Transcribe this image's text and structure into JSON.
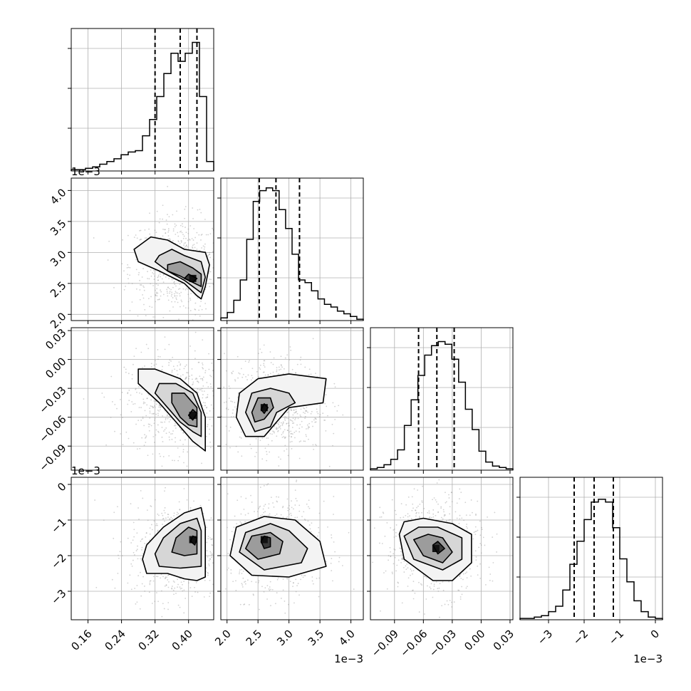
{
  "chart_data": {
    "type": "scatter",
    "subtype": "corner-plot",
    "n_params": 4,
    "grid": true,
    "diagonal": "step-histogram",
    "quantile_line_style": "dashed",
    "offset_label": "1e−3",
    "params": [
      {
        "range": [
          0.12,
          0.46
        ],
        "ticks": [
          0.16,
          0.24,
          0.32,
          0.4
        ],
        "tick_labels": [
          "0.16",
          "0.24",
          "0.32",
          "0.40"
        ],
        "quantiles": [
          0.32,
          0.38,
          0.42
        ],
        "offset": ""
      },
      {
        "range": [
          1.9,
          4.2
        ],
        "ticks": [
          2.0,
          2.5,
          3.0,
          3.5,
          4.0
        ],
        "tick_labels": [
          "2.0",
          "2.5",
          "3.0",
          "3.5",
          "4.0"
        ],
        "quantiles": [
          2.52,
          2.79,
          3.17
        ],
        "offset": "1e−3"
      },
      {
        "range": [
          -0.115,
          0.033
        ],
        "ticks": [
          -0.09,
          -0.06,
          -0.03,
          0.0,
          0.03
        ],
        "tick_labels": [
          "−0.09",
          "−0.06",
          "−0.03",
          "0.00",
          "0.03"
        ],
        "quantiles": [
          -0.065,
          -0.046,
          -0.028
        ],
        "offset": ""
      },
      {
        "range": [
          -3.8,
          0.2
        ],
        "ticks": [
          -3,
          -2,
          -1,
          0
        ],
        "tick_labels": [
          "−3",
          "−2",
          "−1",
          "0"
        ],
        "quantiles": [
          -2.28,
          -1.72,
          -1.18
        ],
        "offset": "1e−3"
      }
    ],
    "histograms": [
      [
        0.01,
        0.01,
        0.02,
        0.03,
        0.05,
        0.07,
        0.09,
        0.12,
        0.14,
        0.15,
        0.26,
        0.38,
        0.55,
        0.72,
        0.87,
        0.81,
        0.87,
        0.95,
        0.55,
        0.07
      ],
      [
        0.02,
        0.06,
        0.15,
        0.3,
        0.6,
        0.88,
        0.96,
        0.98,
        0.96,
        0.82,
        0.68,
        0.49,
        0.3,
        0.28,
        0.22,
        0.16,
        0.12,
        0.1,
        0.07,
        0.05,
        0.03,
        0.01
      ],
      [
        0.01,
        0.02,
        0.04,
        0.08,
        0.15,
        0.33,
        0.52,
        0.7,
        0.85,
        0.92,
        0.95,
        0.93,
        0.82,
        0.65,
        0.45,
        0.3,
        0.14,
        0.06,
        0.03,
        0.02,
        0.01
      ],
      [
        0.01,
        0.01,
        0.02,
        0.03,
        0.06,
        0.1,
        0.22,
        0.41,
        0.58,
        0.74,
        0.87,
        0.89,
        0.87,
        0.68,
        0.45,
        0.28,
        0.14,
        0.06,
        0.02,
        0.01
      ]
    ],
    "pairs": [
      {
        "x": 0,
        "y": 1,
        "peak": [
          0.41,
          2.58
        ],
        "contours": [
          [
            [
              0.43,
              2.25
            ],
            [
              0.44,
              2.45
            ],
            [
              0.45,
              2.8
            ],
            [
              0.44,
              3.0
            ],
            [
              0.39,
              3.05
            ],
            [
              0.35,
              3.2
            ],
            [
              0.31,
              3.25
            ],
            [
              0.27,
              3.05
            ],
            [
              0.28,
              2.85
            ],
            [
              0.33,
              2.7
            ],
            [
              0.39,
              2.5
            ],
            [
              0.42,
              2.3
            ]
          ],
          [
            [
              0.43,
              2.35
            ],
            [
              0.44,
              2.6
            ],
            [
              0.43,
              2.85
            ],
            [
              0.39,
              2.95
            ],
            [
              0.36,
              3.05
            ],
            [
              0.33,
              2.95
            ],
            [
              0.32,
              2.85
            ],
            [
              0.35,
              2.7
            ],
            [
              0.39,
              2.55
            ],
            [
              0.41,
              2.45
            ]
          ],
          [
            [
              0.43,
              2.45
            ],
            [
              0.43,
              2.65
            ],
            [
              0.41,
              2.75
            ],
            [
              0.38,
              2.85
            ],
            [
              0.35,
              2.8
            ],
            [
              0.35,
              2.7
            ],
            [
              0.38,
              2.62
            ],
            [
              0.4,
              2.55
            ]
          ],
          [
            [
              0.41,
              2.52
            ],
            [
              0.42,
              2.58
            ],
            [
              0.4,
              2.65
            ],
            [
              0.39,
              2.58
            ]
          ]
        ]
      },
      {
        "x": 0,
        "y": 2,
        "peak": [
          0.41,
          -0.058
        ],
        "contours": [
          [
            [
              0.44,
              -0.095
            ],
            [
              0.44,
              -0.06
            ],
            [
              0.42,
              -0.035
            ],
            [
              0.38,
              -0.02
            ],
            [
              0.32,
              -0.01
            ],
            [
              0.28,
              -0.01
            ],
            [
              0.28,
              -0.025
            ],
            [
              0.33,
              -0.045
            ],
            [
              0.37,
              -0.065
            ],
            [
              0.41,
              -0.085
            ]
          ],
          [
            [
              0.43,
              -0.08
            ],
            [
              0.43,
              -0.055
            ],
            [
              0.41,
              -0.035
            ],
            [
              0.37,
              -0.025
            ],
            [
              0.33,
              -0.025
            ],
            [
              0.32,
              -0.035
            ],
            [
              0.35,
              -0.05
            ],
            [
              0.38,
              -0.065
            ],
            [
              0.41,
              -0.075
            ]
          ],
          [
            [
              0.42,
              -0.07
            ],
            [
              0.42,
              -0.05
            ],
            [
              0.39,
              -0.035
            ],
            [
              0.36,
              -0.035
            ],
            [
              0.36,
              -0.045
            ],
            [
              0.38,
              -0.06
            ],
            [
              0.4,
              -0.068
            ]
          ],
          [
            [
              0.41,
              -0.063
            ],
            [
              0.42,
              -0.056
            ],
            [
              0.41,
              -0.052
            ],
            [
              0.4,
              -0.058
            ]
          ]
        ]
      },
      {
        "x": 0,
        "y": 3,
        "peak": [
          0.41,
          -1.55
        ],
        "contours": [
          [
            [
              0.44,
              -2.6
            ],
            [
              0.44,
              -1.2
            ],
            [
              0.43,
              -0.65
            ],
            [
              0.39,
              -0.8
            ],
            [
              0.34,
              -1.2
            ],
            [
              0.3,
              -1.7
            ],
            [
              0.29,
              -2.1
            ],
            [
              0.3,
              -2.5
            ],
            [
              0.35,
              -2.5
            ],
            [
              0.39,
              -2.65
            ],
            [
              0.42,
              -2.7
            ]
          ],
          [
            [
              0.43,
              -2.3
            ],
            [
              0.43,
              -1.3
            ],
            [
              0.42,
              -0.95
            ],
            [
              0.38,
              -1.1
            ],
            [
              0.34,
              -1.5
            ],
            [
              0.32,
              -1.95
            ],
            [
              0.33,
              -2.3
            ],
            [
              0.38,
              -2.35
            ]
          ],
          [
            [
              0.42,
              -1.95
            ],
            [
              0.42,
              -1.3
            ],
            [
              0.4,
              -1.2
            ],
            [
              0.37,
              -1.5
            ],
            [
              0.36,
              -1.9
            ],
            [
              0.39,
              -2.0
            ]
          ],
          [
            [
              0.415,
              -1.7
            ],
            [
              0.42,
              -1.5
            ],
            [
              0.41,
              -1.45
            ],
            [
              0.405,
              -1.6
            ]
          ]
        ]
      },
      {
        "x": 1,
        "y": 2,
        "peak": [
          2.6,
          -0.05
        ],
        "contours": [
          [
            [
              2.15,
              -0.06
            ],
            [
              2.2,
              -0.035
            ],
            [
              2.5,
              -0.02
            ],
            [
              3.0,
              -0.015
            ],
            [
              3.6,
              -0.02
            ],
            [
              3.55,
              -0.045
            ],
            [
              3.0,
              -0.05
            ],
            [
              2.8,
              -0.065
            ],
            [
              2.6,
              -0.08
            ],
            [
              2.3,
              -0.08
            ]
          ],
          [
            [
              2.3,
              -0.055
            ],
            [
              2.4,
              -0.035
            ],
            [
              2.7,
              -0.03
            ],
            [
              3.0,
              -0.035
            ],
            [
              3.1,
              -0.045
            ],
            [
              2.8,
              -0.055
            ],
            [
              2.7,
              -0.07
            ],
            [
              2.45,
              -0.075
            ]
          ],
          [
            [
              2.4,
              -0.055
            ],
            [
              2.5,
              -0.04
            ],
            [
              2.7,
              -0.04
            ],
            [
              2.75,
              -0.05
            ],
            [
              2.6,
              -0.062
            ],
            [
              2.45,
              -0.065
            ]
          ],
          [
            [
              2.55,
              -0.052
            ],
            [
              2.6,
              -0.046
            ],
            [
              2.66,
              -0.05
            ],
            [
              2.6,
              -0.056
            ]
          ]
        ]
      },
      {
        "x": 1,
        "y": 3,
        "peak": [
          2.6,
          -1.55
        ],
        "contours": [
          [
            [
              2.05,
              -2.0
            ],
            [
              2.15,
              -1.2
            ],
            [
              2.6,
              -0.9
            ],
            [
              3.1,
              -1.0
            ],
            [
              3.5,
              -1.6
            ],
            [
              3.6,
              -2.3
            ],
            [
              3.0,
              -2.6
            ],
            [
              2.4,
              -2.55
            ]
          ],
          [
            [
              2.2,
              -1.9
            ],
            [
              2.3,
              -1.35
            ],
            [
              2.7,
              -1.1
            ],
            [
              3.0,
              -1.3
            ],
            [
              3.3,
              -1.8
            ],
            [
              3.2,
              -2.2
            ],
            [
              2.6,
              -2.4
            ]
          ],
          [
            [
              2.3,
              -1.8
            ],
            [
              2.4,
              -1.45
            ],
            [
              2.7,
              -1.35
            ],
            [
              2.9,
              -1.6
            ],
            [
              2.85,
              -1.95
            ],
            [
              2.5,
              -2.1
            ]
          ],
          [
            [
              2.55,
              -1.6
            ],
            [
              2.6,
              -1.45
            ],
            [
              2.7,
              -1.5
            ],
            [
              2.7,
              -1.75
            ],
            [
              2.6,
              -1.8
            ]
          ]
        ]
      },
      {
        "x": 2,
        "y": 3,
        "peak": [
          -0.047,
          -1.8
        ],
        "contours": [
          [
            [
              -0.085,
              -1.4
            ],
            [
              -0.08,
              -1.05
            ],
            [
              -0.06,
              -0.95
            ],
            [
              -0.03,
              -1.1
            ],
            [
              -0.01,
              -1.4
            ],
            [
              -0.01,
              -2.2
            ],
            [
              -0.03,
              -2.7
            ],
            [
              -0.05,
              -2.7
            ],
            [
              -0.08,
              -2.1
            ]
          ],
          [
            [
              -0.08,
              -1.45
            ],
            [
              -0.065,
              -1.2
            ],
            [
              -0.045,
              -1.2
            ],
            [
              -0.02,
              -1.5
            ],
            [
              -0.02,
              -2.1
            ],
            [
              -0.04,
              -2.4
            ],
            [
              -0.07,
              -2.1
            ]
          ],
          [
            [
              -0.07,
              -1.55
            ],
            [
              -0.055,
              -1.4
            ],
            [
              -0.04,
              -1.5
            ],
            [
              -0.03,
              -1.9
            ],
            [
              -0.04,
              -2.2
            ],
            [
              -0.06,
              -2.0
            ]
          ],
          [
            [
              -0.05,
              -1.7
            ],
            [
              -0.045,
              -1.6
            ],
            [
              -0.038,
              -1.8
            ],
            [
              -0.045,
              -1.95
            ]
          ]
        ]
      }
    ]
  }
}
